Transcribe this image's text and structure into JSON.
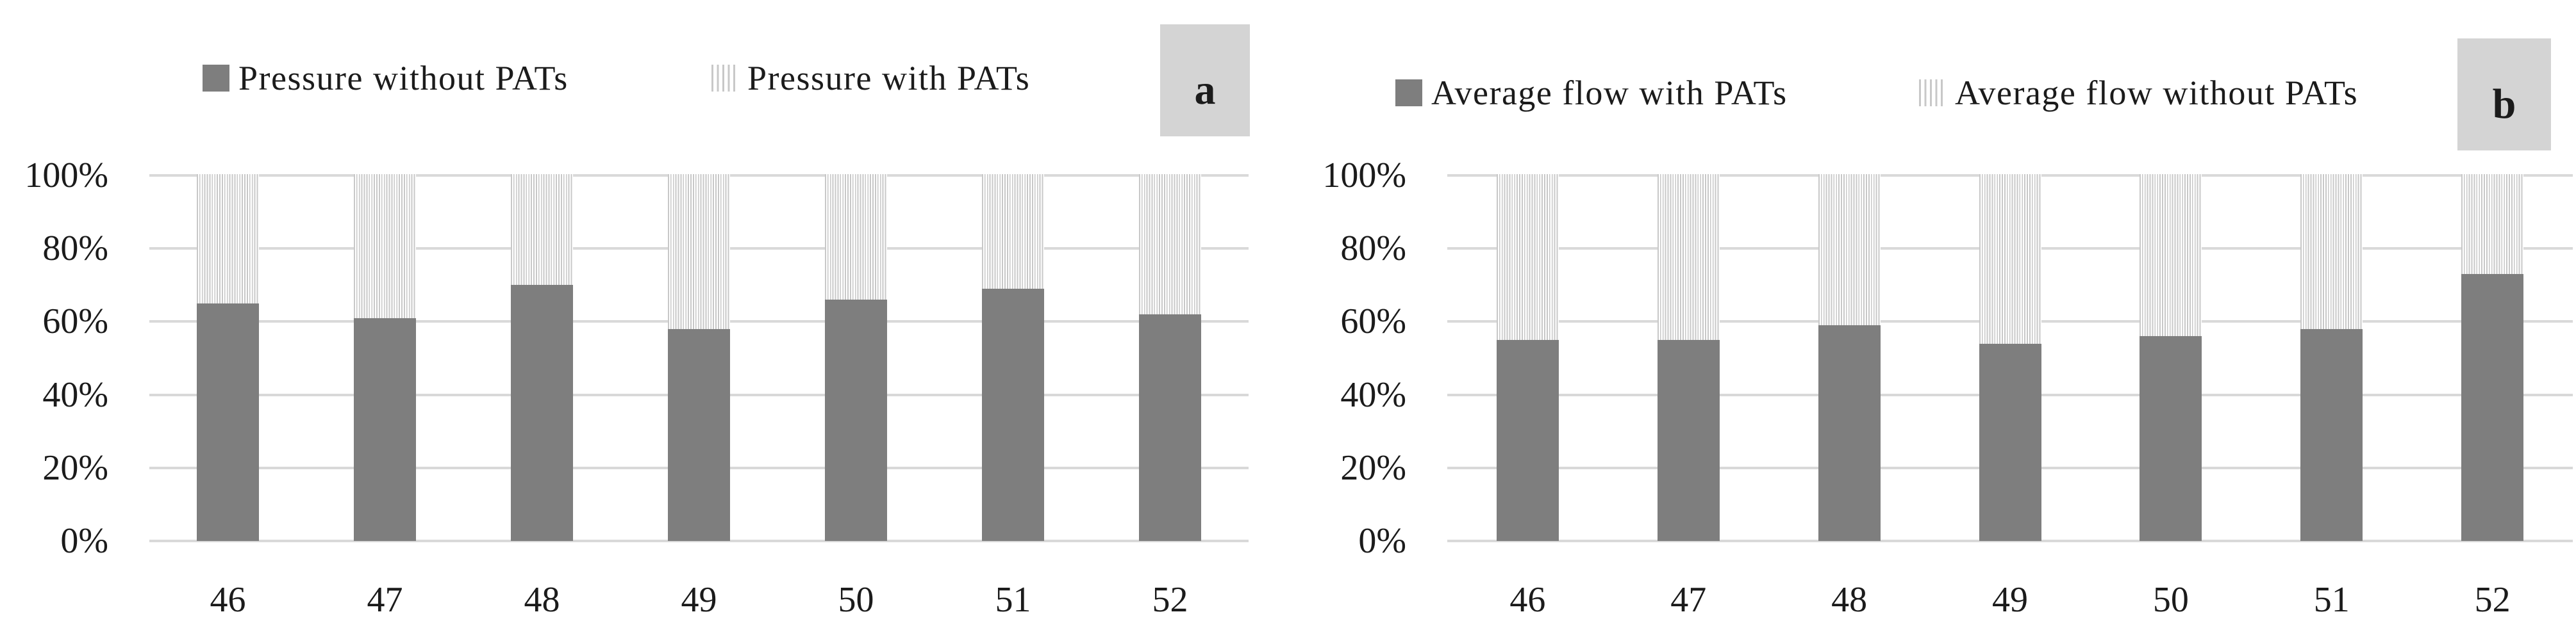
{
  "colors": {
    "solid_bar": "#7e7e7e",
    "stripe_line": "#c8c8c8",
    "gridline": "#d9d9d9",
    "corner_box_bg": "#d4d4d4",
    "text": "#1b1b1b",
    "background": "#ffffff"
  },
  "chart_data": [
    {
      "type": "bar",
      "subtype": "stacked-100-percent",
      "panel_label": "a",
      "title": "",
      "xlabel": "",
      "ylabel": "",
      "ylim": [
        0,
        100
      ],
      "grid": true,
      "legend_position": "top",
      "y_tick_labels": [
        "100%",
        "80%",
        "60%",
        "40%",
        "20%",
        "0%"
      ],
      "categories": [
        "46",
        "47",
        "48",
        "49",
        "50",
        "51",
        "52"
      ],
      "series": [
        {
          "name": "Pressure without PATs",
          "style": "solid",
          "values": [
            65,
            61,
            70,
            58,
            66,
            69,
            62
          ]
        },
        {
          "name": "Pressure with PATs",
          "style": "striped",
          "values": [
            35,
            39,
            30,
            42,
            34,
            31,
            38
          ]
        }
      ]
    },
    {
      "type": "bar",
      "subtype": "stacked-100-percent",
      "panel_label": "b",
      "title": "",
      "xlabel": "",
      "ylabel": "",
      "ylim": [
        0,
        100
      ],
      "grid": true,
      "legend_position": "top",
      "y_tick_labels": [
        "100%",
        "80%",
        "60%",
        "40%",
        "20%",
        "0%"
      ],
      "categories": [
        "46",
        "47",
        "48",
        "49",
        "50",
        "51",
        "52"
      ],
      "series": [
        {
          "name": "Average flow with PATs",
          "style": "solid",
          "values": [
            55,
            55,
            59,
            54,
            56,
            58,
            73
          ]
        },
        {
          "name": "Average flow without PATs",
          "style": "striped",
          "values": [
            45,
            45,
            41,
            46,
            44,
            42,
            27
          ]
        }
      ]
    }
  ]
}
